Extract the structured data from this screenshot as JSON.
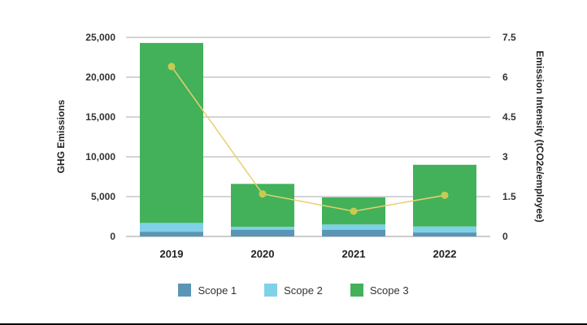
{
  "chart_data": {
    "type": "bar",
    "categories": [
      "2019",
      "2020",
      "2021",
      "2022"
    ],
    "series": [
      {
        "name": "Scope 1",
        "values": [
          600,
          850,
          850,
          500
        ],
        "color": "#5b95b5"
      },
      {
        "name": "Scope 2",
        "values": [
          1100,
          350,
          650,
          750
        ],
        "color": "#7fd1e8"
      },
      {
        "name": "Scope 3",
        "values": [
          22600,
          5400,
          3400,
          7750
        ],
        "color": "#43b15a"
      }
    ],
    "line_series": {
      "values": [
        6.4,
        1.6,
        0.95,
        1.55
      ],
      "color": "#e8cf6d",
      "marker_color": "#c8cb52"
    },
    "ylabel": "GHG Emissions",
    "y2label": "Emission Intensity (tCO2e/employee)",
    "ylim": [
      0,
      25000
    ],
    "y2lim": [
      0,
      7.5
    ],
    "yticks": [
      "0",
      "5,000",
      "10,000",
      "15,000",
      "20,000",
      "25,000"
    ],
    "y2ticks": [
      "0",
      "1.5",
      "3",
      "4.5",
      "6",
      "7.5"
    ],
    "grid": true,
    "legend": "bottom"
  }
}
